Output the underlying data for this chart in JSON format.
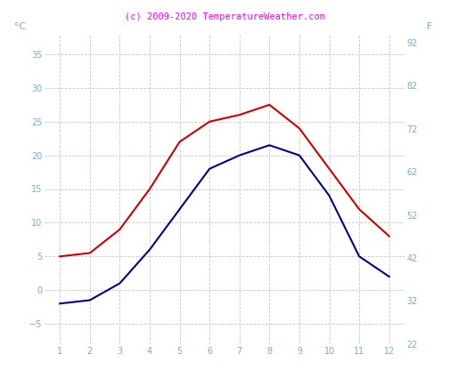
{
  "months": [
    1,
    2,
    3,
    4,
    5,
    6,
    7,
    8,
    9,
    10,
    11,
    12
  ],
  "red_line": [
    5.0,
    5.5,
    9.0,
    15.0,
    22.0,
    25.0,
    26.0,
    27.5,
    24.0,
    18.0,
    12.0,
    8.0
  ],
  "blue_line": [
    -2.0,
    -1.5,
    1.0,
    6.0,
    12.0,
    18.0,
    20.0,
    21.5,
    20.0,
    14.0,
    5.0,
    2.0
  ],
  "title": "(c) 2009-2020 TemperatureWeather.com",
  "title_color": "#ff00ff",
  "ylabel_left": "°C",
  "ylabel_right": "F",
  "ylim_left": [
    -8,
    38
  ],
  "ylim_right": [
    22,
    94
  ],
  "yticks_left": [
    -5,
    0,
    5,
    10,
    15,
    20,
    25,
    30,
    35
  ],
  "yticks_right": [
    22,
    32,
    42,
    52,
    62,
    72,
    82,
    92
  ],
  "xticks": [
    1,
    2,
    3,
    4,
    5,
    6,
    7,
    8,
    9,
    10,
    11,
    12
  ],
  "red_color": "#cc0000",
  "blue_color": "#00008b",
  "background_color": "#ffffff",
  "grid_color": "#c8c8c8",
  "tick_color": "#7aabcc",
  "axis_label_color": "#7aabcc",
  "title_fontsize": 7.5,
  "tick_fontsize": 7,
  "ylabel_fontsize": 8,
  "linewidth": 1.5,
  "figsize": [
    5.04,
    4.25
  ],
  "dpi": 100
}
